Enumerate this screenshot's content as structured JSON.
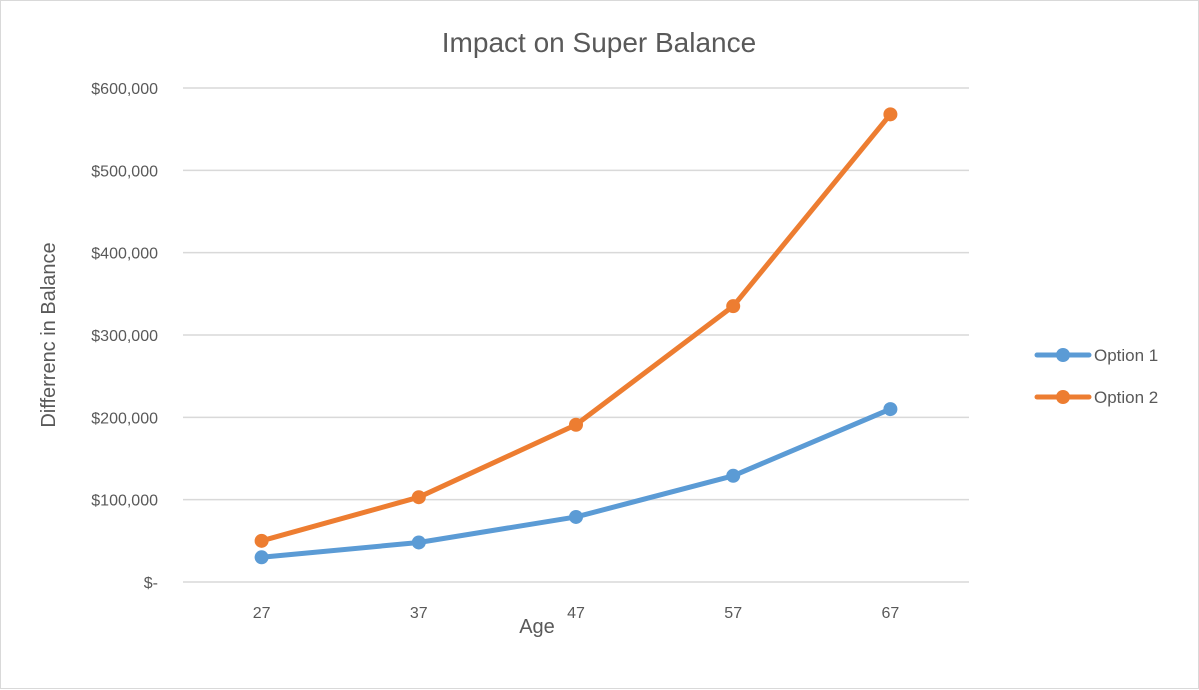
{
  "chart_data": {
    "type": "line",
    "title": "Impact on Super Balance",
    "xlabel": "Age",
    "ylabel": "Differrenc in Balance",
    "categories": [
      "27",
      "37",
      "47",
      "57",
      "67"
    ],
    "ylim": [
      0,
      600000
    ],
    "yticks": [
      0,
      100000,
      200000,
      300000,
      400000,
      500000,
      600000
    ],
    "ytick_labels": [
      "$-",
      "$100,000",
      "$200,000",
      "$300,000",
      "$400,000",
      "$500,000",
      "$600,000"
    ],
    "grid": true,
    "legend_position": "right",
    "series": [
      {
        "name": "Option 1",
        "color": "#5b9bd5",
        "values": [
          30000,
          48000,
          79000,
          129000,
          210000
        ]
      },
      {
        "name": "Option 2",
        "color": "#ed7d31",
        "values": [
          50000,
          103000,
          191000,
          335000,
          568000
        ]
      }
    ]
  }
}
